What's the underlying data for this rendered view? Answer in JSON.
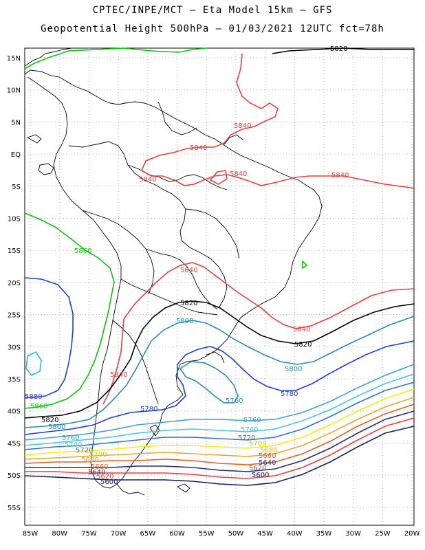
{
  "header": {
    "line1": "CPTEC/INPE/MCT –  Eta Model 15km – GFS",
    "line2": "Geopotential Height 500hPa – 01/03/2021 12UTC fct=78h"
  },
  "axes": {
    "lat_labels": [
      "15N",
      "10N",
      "5N",
      "EQ",
      "5S",
      "10S",
      "15S",
      "20S",
      "25S",
      "30S",
      "35S",
      "40S",
      "45S",
      "50S",
      "55S"
    ],
    "lon_labels": [
      "85W",
      "80W",
      "75W",
      "70W",
      "65W",
      "60W",
      "55W",
      "50W",
      "45W",
      "40W",
      "35W",
      "30W",
      "25W",
      "20W"
    ]
  },
  "colors": {
    "c5860": "#00c800",
    "c5840": "#e83c3c",
    "c5820": "#000000",
    "c5800": "#2888b8",
    "c5780": "#1a3ce0",
    "c5760": "#3aa0d8",
    "c5740": "#40c8e0",
    "c5720": "#3070d0",
    "c5700": "#f0f000",
    "c5680": "#e8a820",
    "c5660": "#e06020",
    "c5640": "#203070",
    "c5620": "#e83c3c",
    "c5600": "#102060",
    "border": "#000000",
    "grid": "#b0b0b0"
  },
  "contour_labels": {
    "l5820_top": "5820",
    "l5840_a": "5840",
    "l5840_b": "5840",
    "l5840_c": "5840",
    "l5840_d": "5840",
    "l5840_e": "5840",
    "l5860_a": "5860",
    "l5840_f": "5840",
    "l5820_a": "5820",
    "l5800_a": "5800",
    "l5840_g": "5840",
    "l5820_b": "5820",
    "l5800_b": "5800",
    "l5840_h": "5840",
    "l5760_a": "5760",
    "l5780_a": "5780",
    "l5880_a": "5880",
    "l5860_b": "5860",
    "l5820_c": "5820",
    "l5800_c": "5800",
    "l5780_b": "5780",
    "l5760_b": "5760",
    "l5740_a": "5740",
    "l5720_a": "5720",
    "l5700_a": "5700",
    "l5680_a": "5680",
    "l5660_a": "5660",
    "l5640_a": "5640",
    "l5620_a": "5620",
    "l5600_a": "5600",
    "l5760_c": "5760",
    "l5740_b": "5740",
    "l5720_b": "5720",
    "l5700_b": "5700",
    "l5680_b": "5680",
    "l5660_b": "5660",
    "l5640_b": "5640",
    "l5620_b": "5620",
    "l5600_b": "5600"
  }
}
